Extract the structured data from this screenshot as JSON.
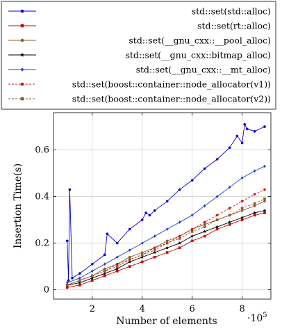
{
  "chart_data": {
    "type": "line",
    "xlabel": "Number of elements",
    "ylabel": "Insertion Time(s)",
    "x_multiplier": "·10",
    "x_multiplier_exp": "5",
    "xlim": [
      0.45,
      9.15
    ],
    "ylim": [
      -0.04,
      0.76
    ],
    "xticks": [
      2,
      4,
      6,
      8
    ],
    "yticks": [
      0,
      0.2,
      0.4,
      0.6
    ],
    "xtick_labels": [
      "2",
      "4",
      "6",
      "8"
    ],
    "ytick_labels": [
      "0",
      "0.2",
      "0.4",
      "0.6"
    ],
    "grid": true,
    "legend_position": "top",
    "series": [
      {
        "name": "std::set(std::alloc)",
        "color": "#0000cc",
        "marker": "circle",
        "dashed": false,
        "x": [
          1.0,
          1.05,
          1.1,
          1.2,
          1.5,
          2.0,
          2.5,
          2.6,
          3.0,
          3.5,
          4.0,
          4.15,
          4.3,
          4.5,
          5.0,
          5.5,
          6.0,
          6.5,
          7.0,
          7.5,
          7.8,
          8.0,
          8.1,
          8.2,
          8.5,
          8.9
        ],
        "y": [
          0.21,
          0.04,
          0.43,
          0.05,
          0.07,
          0.11,
          0.15,
          0.24,
          0.2,
          0.26,
          0.3,
          0.33,
          0.32,
          0.34,
          0.38,
          0.43,
          0.47,
          0.52,
          0.56,
          0.61,
          0.66,
          0.63,
          0.71,
          0.69,
          0.68,
          0.7
        ]
      },
      {
        "name": "std::set(rt::alloc)",
        "color": "#cc0000",
        "marker": "square",
        "dashed": false,
        "x": [
          1.0,
          1.5,
          2.0,
          2.5,
          3.0,
          3.5,
          4.0,
          4.5,
          5.0,
          5.5,
          6.0,
          6.5,
          7.0,
          7.5,
          8.0,
          8.5,
          8.9
        ],
        "y": [
          0.01,
          0.02,
          0.04,
          0.06,
          0.08,
          0.1,
          0.12,
          0.14,
          0.16,
          0.18,
          0.21,
          0.23,
          0.26,
          0.28,
          0.3,
          0.32,
          0.33
        ]
      },
      {
        "name": "std::set(__gnu_cxx::__pool_alloc)",
        "color": "#8b5a2b",
        "marker": "circle",
        "dashed": false,
        "x": [
          1.0,
          1.5,
          2.0,
          2.5,
          3.0,
          3.5,
          4.0,
          4.5,
          5.0,
          5.5,
          6.0,
          6.5,
          7.0,
          7.5,
          8.0,
          8.5,
          8.9
        ],
        "y": [
          0.02,
          0.04,
          0.06,
          0.09,
          0.11,
          0.14,
          0.16,
          0.18,
          0.21,
          0.23,
          0.26,
          0.28,
          0.3,
          0.32,
          0.34,
          0.36,
          0.38
        ]
      },
      {
        "name": "std::set(__gnu_cxx::bitmap_alloc)",
        "color": "#000000",
        "marker": "star",
        "dashed": false,
        "x": [
          1.0,
          1.5,
          2.0,
          2.5,
          3.0,
          3.5,
          4.0,
          4.5,
          5.0,
          5.5,
          6.0,
          6.5,
          7.0,
          7.5,
          8.0,
          8.5,
          8.9
        ],
        "y": [
          0.02,
          0.03,
          0.05,
          0.07,
          0.09,
          0.12,
          0.14,
          0.16,
          0.18,
          0.2,
          0.23,
          0.25,
          0.27,
          0.29,
          0.31,
          0.33,
          0.34
        ]
      },
      {
        "name": "std::set(__gnu_cxx::__mt_alloc)",
        "color": "#1f3fcf",
        "marker": "diamond",
        "dashed": false,
        "x": [
          1.0,
          1.5,
          2.0,
          2.5,
          3.0,
          3.5,
          4.0,
          4.5,
          5.0,
          5.5,
          6.0,
          6.5,
          7.0,
          7.5,
          8.0,
          8.5,
          8.9
        ],
        "y": [
          0.03,
          0.05,
          0.08,
          0.11,
          0.14,
          0.17,
          0.2,
          0.23,
          0.26,
          0.29,
          0.32,
          0.36,
          0.4,
          0.44,
          0.48,
          0.51,
          0.53
        ]
      },
      {
        "name": "std::set(boost::container::node_allocator(v1))",
        "color": "#dd1111",
        "marker": "circle",
        "dashed": true,
        "x": [
          1.0,
          1.5,
          2.0,
          2.5,
          3.0,
          3.5,
          4.0,
          4.5,
          5.0,
          5.5,
          6.0,
          6.5,
          7.0,
          7.5,
          8.0,
          8.5,
          8.9
        ],
        "y": [
          0.02,
          0.04,
          0.06,
          0.08,
          0.11,
          0.13,
          0.15,
          0.18,
          0.2,
          0.23,
          0.26,
          0.29,
          0.32,
          0.35,
          0.38,
          0.41,
          0.43
        ]
      },
      {
        "name": "std::set(boost::container::node_allocator(v2))",
        "color": "#8b5a2b",
        "marker": "square",
        "dashed": true,
        "x": [
          1.0,
          1.5,
          2.0,
          2.5,
          3.0,
          3.5,
          4.0,
          4.5,
          5.0,
          5.5,
          6.0,
          6.5,
          7.0,
          7.5,
          8.0,
          8.5,
          8.9
        ],
        "y": [
          0.02,
          0.04,
          0.06,
          0.08,
          0.1,
          0.13,
          0.15,
          0.17,
          0.2,
          0.22,
          0.25,
          0.27,
          0.3,
          0.32,
          0.35,
          0.37,
          0.39
        ]
      }
    ]
  }
}
